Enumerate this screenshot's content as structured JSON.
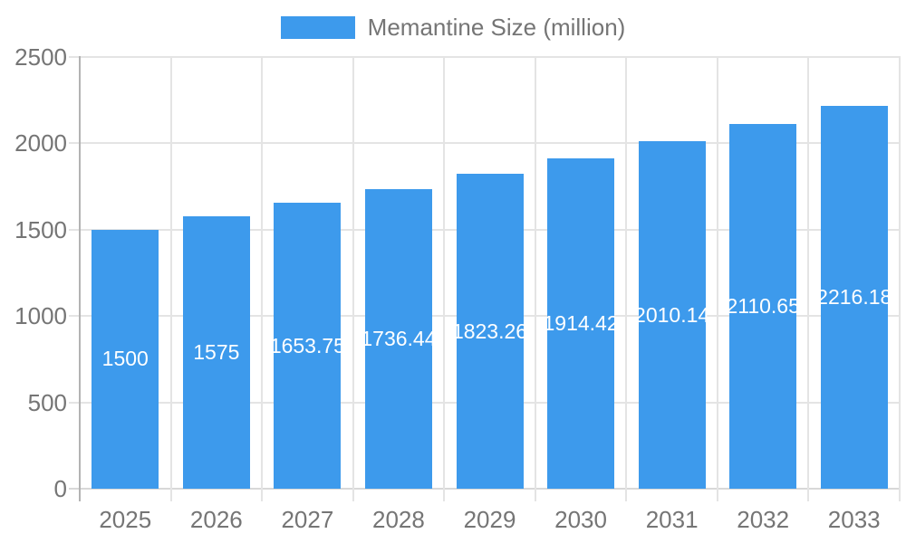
{
  "legend": {
    "label": "Memantine Size (million)"
  },
  "colors": {
    "bar": "#3D9AEC",
    "axis_label": "#757575",
    "legend_text": "#757575",
    "grid": "#E4E4E4",
    "baseline": "#D8D8D8",
    "axis_line": "#B3B3B3",
    "value_label": "#FFFFFF",
    "background": "#FFFFFF"
  },
  "chart_data": {
    "type": "bar",
    "title": "",
    "xlabel": "",
    "ylabel": "",
    "categories": [
      "2025",
      "2026",
      "2027",
      "2028",
      "2029",
      "2030",
      "2031",
      "2032",
      "2033"
    ],
    "series": [
      {
        "name": "Memantine Size (million)",
        "values": [
          1500,
          1575,
          1653.75,
          1736.44,
          1823.26,
          1914.42,
          2010.14,
          2110.65,
          2216.18
        ]
      }
    ],
    "ylim": [
      0,
      2500
    ],
    "yticks": [
      0,
      500,
      1000,
      1500,
      2000,
      2500
    ],
    "grid": true,
    "legend_position": "top",
    "value_label_position": "inside-center"
  }
}
